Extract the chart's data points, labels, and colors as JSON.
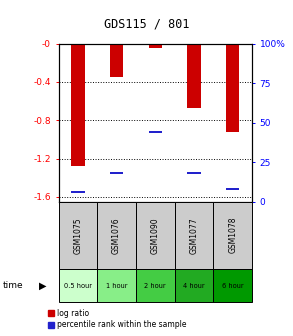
{
  "title": "GDS115 / 801",
  "samples": [
    "GSM1075",
    "GSM1076",
    "GSM1090",
    "GSM1077",
    "GSM1078"
  ],
  "time_labels": [
    "0.5 hour",
    "1 hour",
    "2 hour",
    "4 hour",
    "6 hour"
  ],
  "log_ratios": [
    -1.28,
    -0.35,
    -0.05,
    -0.67,
    -0.92
  ],
  "percentile_ranks": [
    0.06,
    0.18,
    0.44,
    0.18,
    0.08
  ],
  "bar_color": "#cc0000",
  "pct_color": "#2222cc",
  "ylim_left": [
    -1.65,
    0.0
  ],
  "ylim_right": [
    0,
    100
  ],
  "yticks_left": [
    0.0,
    -0.4,
    -0.8,
    -1.2,
    -1.6
  ],
  "yticks_left_labels": [
    "-0",
    "-0.4",
    "-0.8",
    "-1.2",
    "-1.6"
  ],
  "yticks_right": [
    0,
    25,
    50,
    75,
    100
  ],
  "yticks_right_labels": [
    "0",
    "25",
    "50",
    "75",
    "100%"
  ],
  "bar_width": 0.35,
  "bg_color": "#ffffff",
  "time_colors": [
    "#ccffcc",
    "#88ee88",
    "#44cc44",
    "#22aa22",
    "#009900"
  ],
  "sample_bg": "#cccccc"
}
